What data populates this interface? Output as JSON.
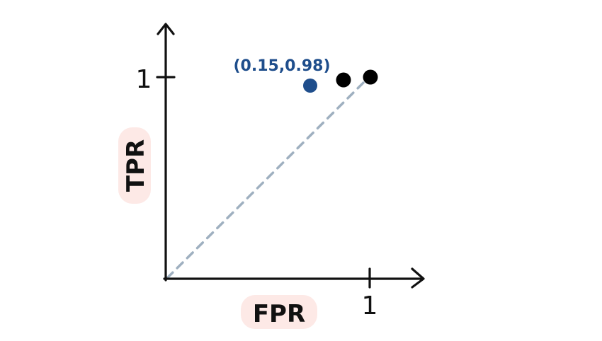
{
  "diagram": {
    "ylabel": "TPR",
    "xlabel": "FPR",
    "x_tick_label": "1",
    "y_tick_label": "1",
    "point_annotation": "(0.15,0.98)",
    "colors": {
      "axis": "#111111",
      "highlight_point": "#1f4e8c",
      "annotation_text": "#1f4e8c",
      "other_points": "#000000",
      "diagonal": "#9fb0c0",
      "label_background": "#fde9e6"
    }
  }
}
